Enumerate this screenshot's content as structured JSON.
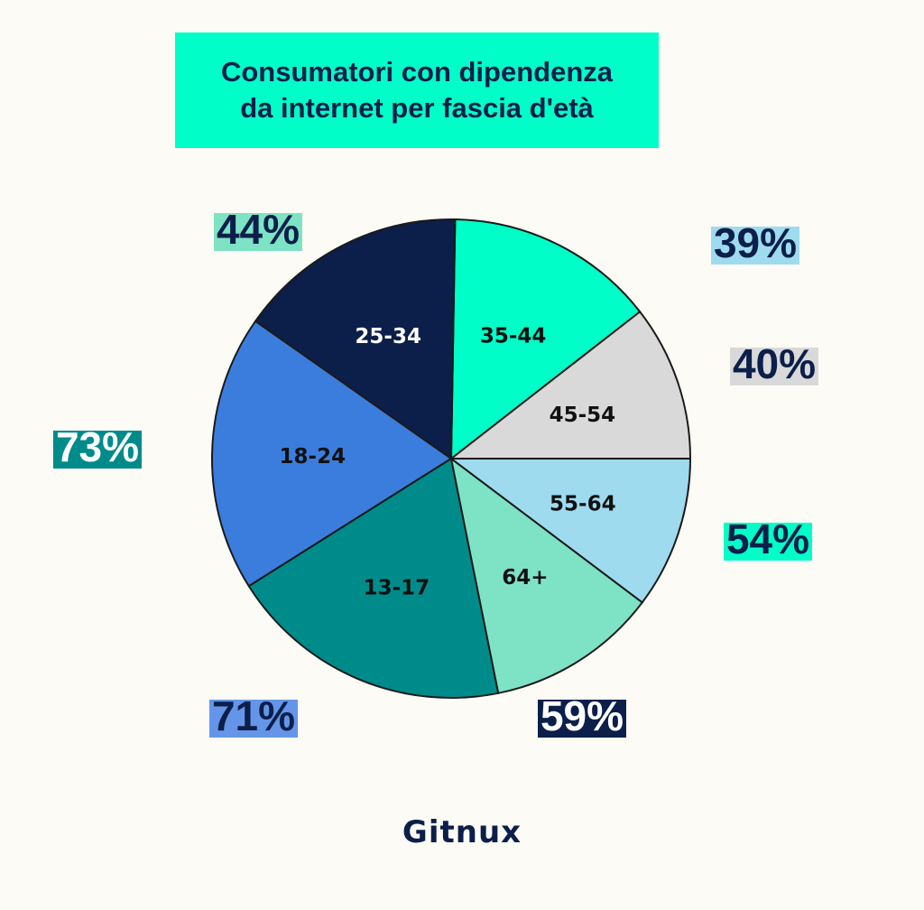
{
  "title": "Consumatori con dipendenza\nda internet per fascia d'età",
  "logo": "Gitnux",
  "colors": {
    "background": "#fdfbf5",
    "title_box": "#00ffc8",
    "dark_navy": "#0c1f4a"
  },
  "chart_data": {
    "type": "pie",
    "title": "Consumatori con dipendenza da internet per fascia d'età",
    "slices": [
      {
        "category": "45-54",
        "value": 40,
        "label": "40%",
        "color": "#d9d9d9",
        "text_color": "#111111",
        "pct_text_color": "#0c1f4a",
        "pct_bg": "#d9d9d9"
      },
      {
        "category": "35-44",
        "value": 54,
        "label": "54%",
        "color": "#00ffc8",
        "text_color": "#111111",
        "pct_text_color": "#0c1f4a",
        "pct_bg": "#00ffc8"
      },
      {
        "category": "25-34",
        "value": 59,
        "label": "59%",
        "color": "#0c1f4a",
        "text_color": "#ffffff",
        "pct_text_color": "#ffffff",
        "pct_bg": "#0c1f4a"
      },
      {
        "category": "18-24",
        "value": 71,
        "label": "71%",
        "color": "#3b7ddd",
        "text_color": "#111111",
        "pct_text_color": "#0c1f4a",
        "pct_bg": "#6495e8"
      },
      {
        "category": "13-17",
        "value": 73,
        "label": "73%",
        "color": "#008b8b",
        "text_color": "#111111",
        "pct_text_color": "#ffffff",
        "pct_bg": "#008b8b"
      },
      {
        "category": "64+",
        "value": 44,
        "label": "44%",
        "color": "#7de3c4",
        "text_color": "#111111",
        "pct_text_color": "#0c1f4a",
        "pct_bg": "#7de3c4"
      },
      {
        "category": "55-64",
        "value": 39,
        "label": "39%",
        "color": "#9edbee",
        "text_color": "#111111",
        "pct_text_color": "#0c1f4a",
        "pct_bg": "#9edbee"
      }
    ]
  }
}
